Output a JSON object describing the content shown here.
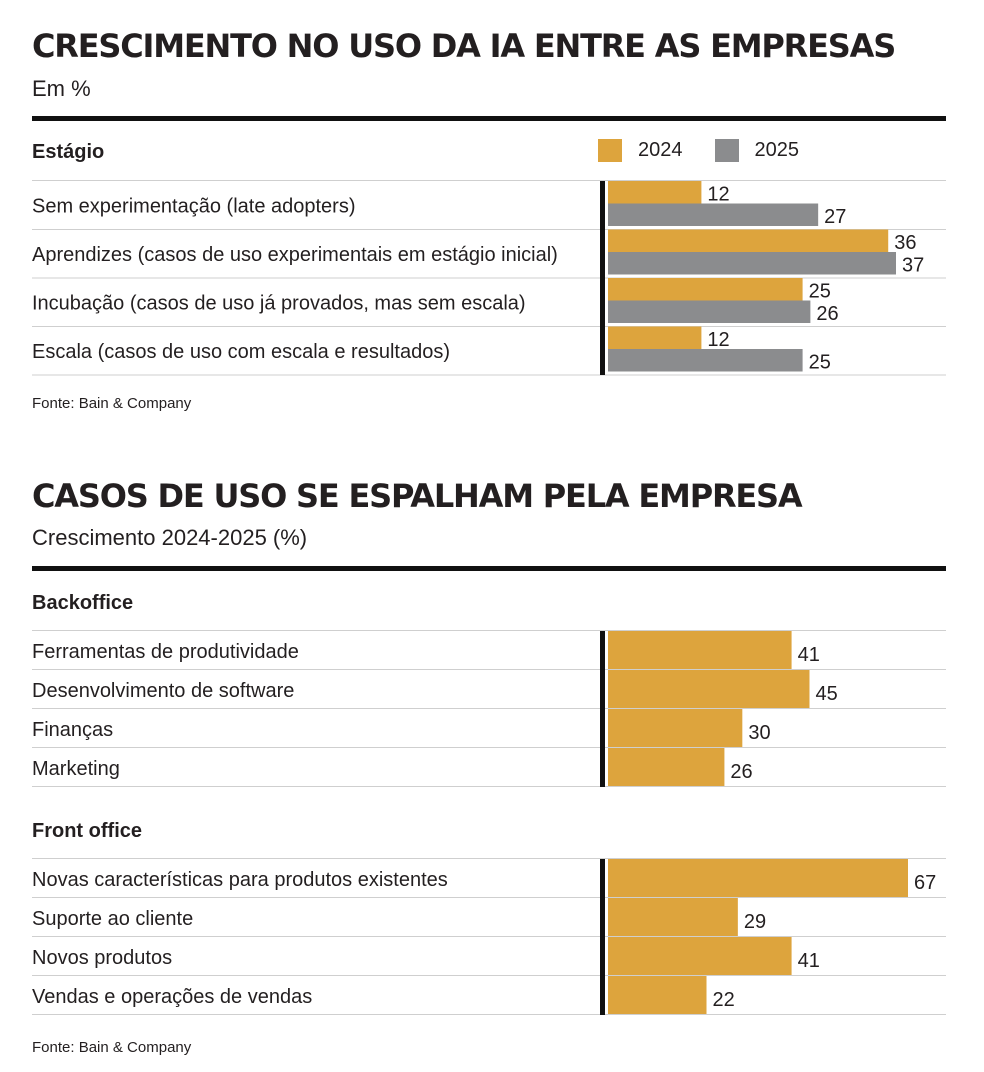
{
  "chart_data": [
    {
      "type": "bar",
      "orientation": "horizontal",
      "title": "CRESCIMENTO NO USO DA IA ENTRE AS EMPRESAS",
      "subtitle": "Em %",
      "category_header": "Estágio",
      "categories": [
        "Sem experimentação (late adopters)",
        "Aprendizes (casos de uso experimentais em estágio inicial)",
        "Incubação (casos de uso já provados, mas sem escala)",
        "Escala (casos de uso com escala e resultados)"
      ],
      "series": [
        {
          "name": "2024",
          "color": "#dda43d",
          "values": [
            12,
            36,
            25,
            12
          ]
        },
        {
          "name": "2025",
          "color": "#8b8c8e",
          "values": [
            27,
            37,
            26,
            25
          ]
        }
      ],
      "xlim": [
        0,
        37
      ],
      "legend": "top-right",
      "data_labels": true,
      "source": "Fonte: Bain & Company"
    },
    {
      "type": "bar",
      "orientation": "horizontal",
      "title": "CASOS DE USO SE ESPALHAM PELA EMPRESA",
      "subtitle": "Crescimento 2024-2025 (%)",
      "color": "#dda43d",
      "groups": [
        {
          "name": "Backoffice",
          "categories": [
            "Ferramentas de produtividade",
            "Desenvolvimento de software",
            "Finanças",
            "Marketing"
          ],
          "values": [
            41,
            45,
            30,
            26
          ]
        },
        {
          "name": "Front office",
          "categories": [
            "Novas características para produtos existentes",
            "Suporte ao cliente",
            "Novos produtos",
            "Vendas e operações de vendas"
          ],
          "values": [
            67,
            29,
            41,
            22
          ]
        }
      ],
      "xlim": [
        0,
        67
      ],
      "data_labels": true,
      "source": "Fonte: Bain & Company"
    }
  ]
}
